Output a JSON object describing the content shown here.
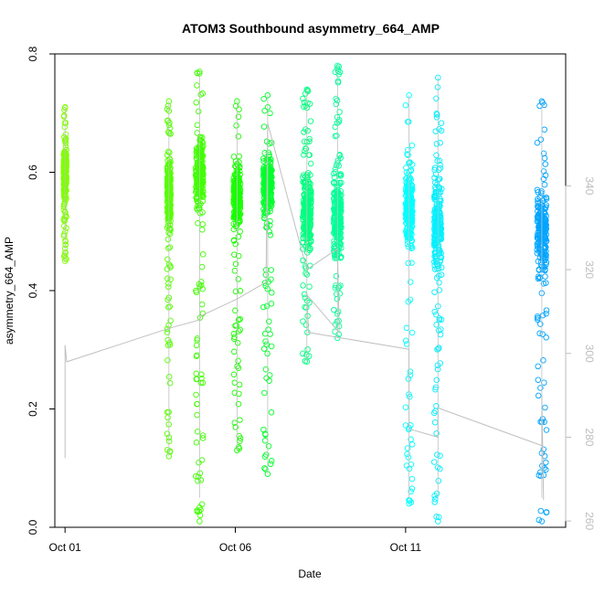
{
  "chart_data": {
    "type": "scatter",
    "title": "ATOM3 Southbound asymmetry_664_AMP",
    "xlabel": "Date",
    "ylabel": "asymmetry_664_AMP",
    "x_unit": "days since Oct 01",
    "xlim": [
      -0.3,
      14.7
    ],
    "ylim": [
      0.0,
      0.8
    ],
    "y2lim": [
      258.5,
      371.5
    ],
    "x_ticks": [
      {
        "value": 0,
        "label": "Oct 01"
      },
      {
        "value": 5,
        "label": "Oct 06"
      },
      {
        "value": 10,
        "label": "Oct 11"
      }
    ],
    "y_ticks": [
      {
        "value": 0.0,
        "label": "0.0"
      },
      {
        "value": 0.2,
        "label": "0.2"
      },
      {
        "value": 0.4,
        "label": "0.4"
      },
      {
        "value": 0.6,
        "label": "0.6"
      },
      {
        "value": 0.8,
        "label": "0.8"
      }
    ],
    "y2_ticks": [
      {
        "value": 260,
        "label": "260"
      },
      {
        "value": 280,
        "label": "280"
      },
      {
        "value": 300,
        "label": "300"
      },
      {
        "value": 320,
        "label": "320"
      },
      {
        "value": 340,
        "label": "340"
      }
    ],
    "series": [
      {
        "name": "asymmetry_664_AMP",
        "marker": "circle-open",
        "clusters": [
          {
            "x": 0.0,
            "width": 0.08,
            "y_min": 0.45,
            "y_max": 0.71,
            "center": 0.6,
            "color": "#80ff00"
          },
          {
            "x": 3.05,
            "width": 0.1,
            "y_min": 0.12,
            "y_max": 0.72,
            "center": 0.56,
            "color": "#55ff00"
          },
          {
            "x": 3.95,
            "width": 0.22,
            "y_min": 0.01,
            "y_max": 0.77,
            "center": 0.6,
            "color": "#40ff00"
          },
          {
            "x": 5.05,
            "width": 0.2,
            "y_min": 0.13,
            "y_max": 0.72,
            "center": 0.56,
            "color": "#1aff00"
          },
          {
            "x": 5.95,
            "width": 0.25,
            "y_min": 0.09,
            "y_max": 0.73,
            "center": 0.58,
            "color": "#00ff2b"
          },
          {
            "x": 7.1,
            "width": 0.25,
            "y_min": 0.28,
            "y_max": 0.74,
            "center": 0.53,
            "color": "#00ff80"
          },
          {
            "x": 8.0,
            "width": 0.22,
            "y_min": 0.32,
            "y_max": 0.78,
            "center": 0.52,
            "color": "#00ff99"
          },
          {
            "x": 10.1,
            "width": 0.2,
            "y_min": 0.04,
            "y_max": 0.73,
            "center": 0.54,
            "color": "#00ffff"
          },
          {
            "x": 10.95,
            "width": 0.22,
            "y_min": 0.01,
            "y_max": 0.76,
            "center": 0.51,
            "color": "#00f0ff"
          },
          {
            "x": 14.0,
            "width": 0.28,
            "y_min": 0.01,
            "y_max": 0.72,
            "center": 0.5,
            "color": "#00a5ff"
          }
        ]
      },
      {
        "name": "secondary (right axis)",
        "color": "#c0c0c0",
        "x": [
          0.0,
          0.0,
          0.05,
          3.05,
          3.95,
          4.0,
          5.05,
          5.9,
          5.95,
          7.1,
          8.0,
          8.05,
          7.1,
          7.15,
          10.1,
          10.1,
          10.95,
          10.95,
          14.0,
          14.0,
          14.05
        ],
        "y": [
          275,
          302,
          298,
          306,
          308,
          309,
          313,
          317,
          355,
          320,
          325,
          305,
          314,
          305,
          301,
          282,
          280,
          287,
          278,
          290,
          265
        ]
      }
    ]
  }
}
